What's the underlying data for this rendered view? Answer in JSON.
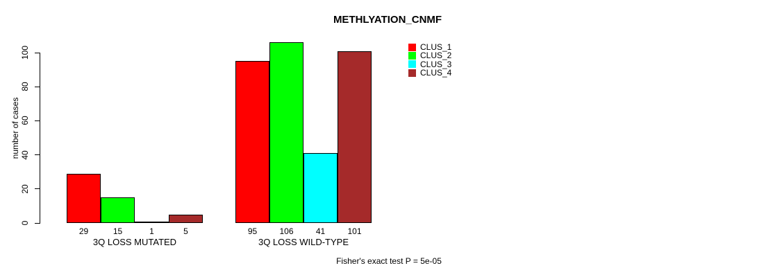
{
  "chart_data": {
    "type": "bar",
    "title": "METHLYATION_CNMF",
    "ylabel": "number of cases",
    "xlabel": "",
    "categories": [
      "3Q LOSS MUTATED",
      "3Q LOSS WILD-TYPE"
    ],
    "series": [
      {
        "name": "CLUS_1",
        "color": "#FF0000",
        "values": [
          29,
          95
        ]
      },
      {
        "name": "CLUS_2",
        "color": "#00FF00",
        "values": [
          15,
          106
        ]
      },
      {
        "name": "CLUS_3",
        "color": "#00FFFF",
        "values": [
          1,
          41
        ]
      },
      {
        "name": "CLUS_4",
        "color": "#A52A2A",
        "values": [
          5,
          101
        ]
      }
    ],
    "yticks": [
      0,
      20,
      40,
      60,
      80,
      100
    ],
    "ylim": [
      0,
      107
    ],
    "grid": false,
    "bar_value_labels": true,
    "legend_position": "top-right",
    "annotation": "Fisher's exact test P = 5e-05"
  }
}
